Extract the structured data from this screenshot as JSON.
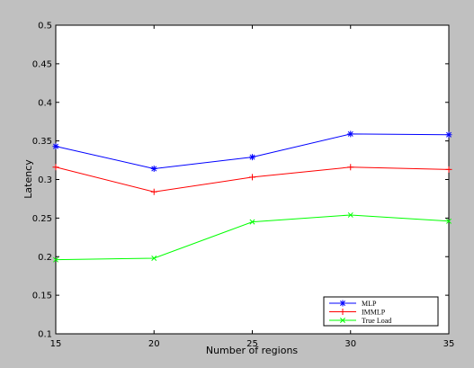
{
  "chart_data": {
    "type": "line",
    "title": "",
    "xlabel": "Number of regions",
    "ylabel": "Latency",
    "xlim": [
      15,
      35
    ],
    "ylim": [
      0.1,
      0.5
    ],
    "xticks": [
      "15",
      "20",
      "25",
      "30",
      "35"
    ],
    "yticks": [
      "0.1",
      "0.15",
      "0.2",
      "0.25",
      "0.3",
      "0.35",
      "0.4",
      "0.45",
      "0.5"
    ],
    "grid": false,
    "legend_position": "bottom-right",
    "x": [
      15,
      20,
      25,
      30,
      35
    ],
    "series": [
      {
        "name": "MLP",
        "values": [
          0.343,
          0.314,
          0.329,
          0.359,
          0.358
        ],
        "color": "#0000ff",
        "marker": "star"
      },
      {
        "name": "IMMLP",
        "values": [
          0.316,
          0.284,
          0.303,
          0.316,
          0.313
        ],
        "color": "#ff0000",
        "marker": "plus"
      },
      {
        "name": "True Load",
        "values": [
          0.196,
          0.198,
          0.245,
          0.254,
          0.246
        ],
        "color": "#00ff00",
        "marker": "x"
      }
    ],
    "background_color": "#c0c0c0",
    "plot_background_color": "#ffffff"
  }
}
